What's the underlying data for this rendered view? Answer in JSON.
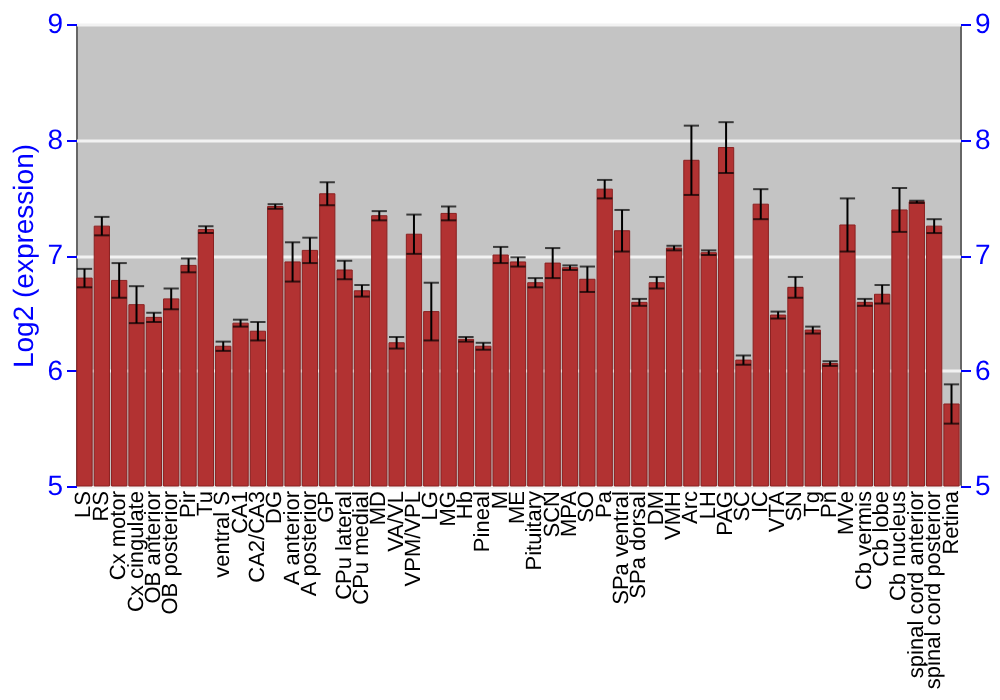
{
  "chart_data": {
    "type": "bar",
    "ylabel": "Log2 (expression)",
    "categories": [
      "LS",
      "RS",
      "Cx motor",
      "Cx cingulate",
      "OB anterior",
      "OB posterior",
      "Pir",
      "Tu",
      "ventral S",
      "CA1",
      "CA2/CA3",
      "DG",
      "A anterior",
      "A posterior",
      "GP",
      "CPu lateral",
      "CPu medial",
      "MD",
      "VA/VL",
      "VPM/VPL",
      "LG",
      "MG",
      "Hb",
      "Pineal",
      "M",
      "ME",
      "Pituitary",
      "SCN",
      "MPA",
      "SO",
      "Pa",
      "SPa ventral",
      "SPa dorsal",
      "DM",
      "VMH",
      "Arc",
      "LH",
      "PAG",
      "SC",
      "IC",
      "VTA",
      "SN",
      "Tg",
      "Pn",
      "MVe",
      "Cb vermis",
      "Cb lobe",
      "Cb nucleus",
      "spinal cord anterior",
      "spinal cord posterior",
      "Retina"
    ],
    "values": [
      6.8,
      7.25,
      6.78,
      6.57,
      6.46,
      6.62,
      6.91,
      7.22,
      6.21,
      6.41,
      6.34,
      7.42,
      6.94,
      7.04,
      7.53,
      6.87,
      6.69,
      7.34,
      6.24,
      7.18,
      6.51,
      7.36,
      6.27,
      6.21,
      7.0,
      6.94,
      6.76,
      6.93,
      6.89,
      6.79,
      7.57,
      7.21,
      6.59,
      6.76,
      7.06,
      7.82,
      7.02,
      7.93,
      6.09,
      7.44,
      6.48,
      6.72,
      6.35,
      6.06,
      7.26,
      6.59,
      6.66,
      7.39,
      7.46,
      7.25,
      5.71
    ],
    "errors": [
      0.08,
      0.08,
      0.15,
      0.16,
      0.04,
      0.09,
      0.06,
      0.03,
      0.04,
      0.03,
      0.08,
      0.02,
      0.17,
      0.11,
      0.1,
      0.08,
      0.05,
      0.04,
      0.05,
      0.17,
      0.25,
      0.06,
      0.02,
      0.03,
      0.07,
      0.04,
      0.04,
      0.13,
      0.02,
      0.11,
      0.08,
      0.18,
      0.03,
      0.05,
      0.02,
      0.3,
      0.02,
      0.22,
      0.04,
      0.13,
      0.03,
      0.09,
      0.03,
      0.02,
      0.23,
      0.03,
      0.08,
      0.19,
      0.01,
      0.06,
      0.17
    ],
    "color": "#b23232",
    "ylim": [
      5,
      9
    ],
    "yticks": [
      5,
      6,
      7,
      8,
      9
    ],
    "y2lim": [
      5,
      9
    ],
    "y2ticks": [
      5,
      6,
      7,
      8,
      9
    ],
    "grid": "y"
  }
}
